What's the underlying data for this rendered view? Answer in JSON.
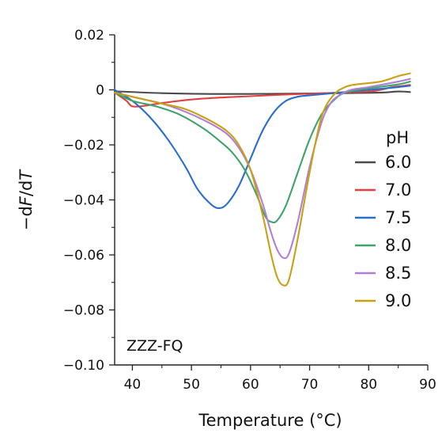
{
  "chart_data": {
    "type": "line",
    "xlabel": "Temperature (°C)",
    "ylabel_prefix": "−d",
    "ylabel_italic1": "F",
    "ylabel_mid": "/d",
    "ylabel_italic2": "T",
    "xlim": [
      37,
      90
    ],
    "ylim": [
      -0.1,
      0.02
    ],
    "xticks": [
      40,
      50,
      60,
      70,
      80,
      90
    ],
    "xtick_labels": [
      "40",
      "50",
      "60",
      "70",
      "80",
      "90"
    ],
    "yticks": [
      0.02,
      0,
      -0.02,
      -0.04,
      -0.06,
      -0.08,
      -0.1
    ],
    "ytick_labels": [
      "0.02",
      "0",
      "−0.02",
      "−0.04",
      "−0.06",
      "−0.08",
      "−0.10"
    ],
    "legend_title": "pH",
    "legend_position": "right",
    "annotation": "ZZZ-FQ",
    "series": [
      {
        "name": "6.0",
        "color": "#4a4a4a",
        "points": [
          [
            37,
            -0.0005
          ],
          [
            45,
            -0.0012
          ],
          [
            55,
            -0.0015
          ],
          [
            65,
            -0.0014
          ],
          [
            75,
            -0.0012
          ],
          [
            82,
            -0.001
          ],
          [
            85,
            -0.0006
          ],
          [
            87,
            -0.0008
          ]
        ]
      },
      {
        "name": "7.0",
        "color": "#e0403f",
        "points": [
          [
            37,
            -0.001
          ],
          [
            39,
            -0.004
          ],
          [
            40,
            -0.006
          ],
          [
            42,
            -0.0058
          ],
          [
            45,
            -0.0048
          ],
          [
            50,
            -0.0035
          ],
          [
            55,
            -0.0028
          ],
          [
            60,
            -0.0023
          ],
          [
            65,
            -0.0018
          ],
          [
            70,
            -0.0014
          ],
          [
            75,
            -0.001
          ],
          [
            80,
            -0.0006
          ],
          [
            82,
            0.0
          ],
          [
            84,
            0.001
          ],
          [
            86,
            0.0015
          ],
          [
            87,
            0.0018
          ]
        ]
      },
      {
        "name": "7.5",
        "color": "#2a6ecb",
        "points": [
          [
            37,
            0.0
          ],
          [
            40,
            -0.004
          ],
          [
            43,
            -0.01
          ],
          [
            46,
            -0.018
          ],
          [
            49,
            -0.028
          ],
          [
            51,
            -0.036
          ],
          [
            53,
            -0.041
          ],
          [
            54.5,
            -0.043
          ],
          [
            56,
            -0.0415
          ],
          [
            58,
            -0.035
          ],
          [
            60,
            -0.025
          ],
          [
            62,
            -0.015
          ],
          [
            64,
            -0.008
          ],
          [
            66,
            -0.004
          ],
          [
            68,
            -0.0025
          ],
          [
            70,
            -0.002
          ],
          [
            75,
            -0.001
          ],
          [
            80,
            0.0
          ],
          [
            85,
            0.001
          ],
          [
            87,
            0.0015
          ]
        ]
      },
      {
        "name": "8.0",
        "color": "#3fa36a",
        "points": [
          [
            37,
            -0.001
          ],
          [
            40,
            -0.004
          ],
          [
            44,
            -0.006
          ],
          [
            48,
            -0.009
          ],
          [
            52,
            -0.014
          ],
          [
            55,
            -0.019
          ],
          [
            57,
            -0.023
          ],
          [
            59,
            -0.029
          ],
          [
            61,
            -0.038
          ],
          [
            62.5,
            -0.046
          ],
          [
            63.5,
            -0.048
          ],
          [
            64.5,
            -0.0475
          ],
          [
            66,
            -0.042
          ],
          [
            68,
            -0.03
          ],
          [
            70,
            -0.018
          ],
          [
            72,
            -0.009
          ],
          [
            74,
            -0.004
          ],
          [
            76,
            -0.001
          ],
          [
            80,
            0.0005
          ],
          [
            85,
            0.002
          ],
          [
            87,
            0.003
          ]
        ]
      },
      {
        "name": "8.5",
        "color": "#b07fd4",
        "points": [
          [
            37,
            -0.001
          ],
          [
            41,
            -0.003
          ],
          [
            45,
            -0.005
          ],
          [
            49,
            -0.008
          ],
          [
            53,
            -0.012
          ],
          [
            56,
            -0.016
          ],
          [
            58,
            -0.021
          ],
          [
            60,
            -0.029
          ],
          [
            62,
            -0.041
          ],
          [
            63.5,
            -0.052
          ],
          [
            64.5,
            -0.058
          ],
          [
            65.5,
            -0.061
          ],
          [
            66.5,
            -0.0595
          ],
          [
            68,
            -0.048
          ],
          [
            70,
            -0.028
          ],
          [
            72,
            -0.012
          ],
          [
            73.5,
            -0.005
          ],
          [
            75,
            -0.002
          ],
          [
            77,
            0.0
          ],
          [
            80,
            0.001
          ],
          [
            85,
            0.003
          ],
          [
            87,
            0.004
          ]
        ]
      },
      {
        "name": "9.0",
        "color": "#c9a012",
        "points": [
          [
            37,
            -0.001
          ],
          [
            41,
            -0.003
          ],
          [
            45,
            -0.005
          ],
          [
            49,
            -0.007
          ],
          [
            53,
            -0.011
          ],
          [
            56,
            -0.015
          ],
          [
            58,
            -0.02
          ],
          [
            60,
            -0.029
          ],
          [
            62,
            -0.045
          ],
          [
            63.5,
            -0.06
          ],
          [
            64.5,
            -0.068
          ],
          [
            65.5,
            -0.071
          ],
          [
            66.5,
            -0.069
          ],
          [
            68,
            -0.054
          ],
          [
            70,
            -0.03
          ],
          [
            72,
            -0.01
          ],
          [
            74,
            -0.002
          ],
          [
            76,
            0.001
          ],
          [
            78,
            0.002
          ],
          [
            82,
            0.003
          ],
          [
            85,
            0.005
          ],
          [
            87,
            0.006
          ]
        ]
      }
    ]
  }
}
